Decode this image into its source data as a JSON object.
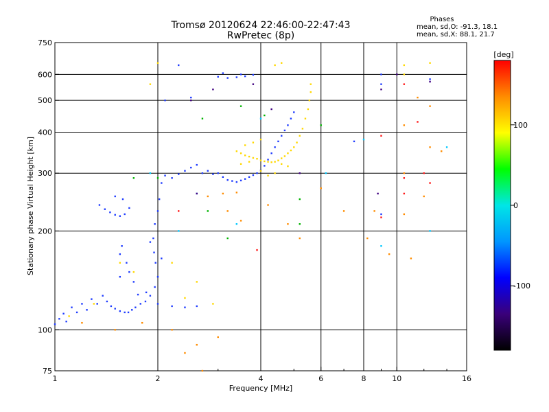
{
  "chart_data": {
    "type": "scatter",
    "title": "Tromsø 20120624 22:46:00-22:47:43",
    "subtitle": "RwPretec (8p)",
    "xlabel": "Frequency [MHz]",
    "ylabel": "Stationary phase Virtual Height [km]",
    "x_scale": "log",
    "y_scale": "log",
    "xlim": [
      1,
      16
    ],
    "ylim": [
      75,
      750
    ],
    "x_ticks": [
      1,
      2,
      4,
      6,
      8,
      10,
      16
    ],
    "y_ticks": [
      75,
      100,
      200,
      300,
      400,
      500,
      600,
      750
    ],
    "x_grid": [
      2,
      4,
      6,
      8,
      10
    ],
    "y_grid": [
      100,
      200,
      300,
      400,
      500,
      600
    ],
    "grid": true,
    "colorbar": {
      "label": "[deg]",
      "ticks": [
        100,
        0,
        -100
      ],
      "range": [
        -180,
        180
      ],
      "colors": [
        "#000000",
        "#3a007a",
        "#0000ff",
        "#0096ff",
        "#00e6e6",
        "#00ff00",
        "#ffff00",
        "#ff8c00",
        "#ff0000"
      ]
    },
    "legend": {
      "title": "Phases",
      "entries": [
        "mean, sd,O: -91.3, 18.1",
        "mean, sd,X:  88.1, 21.7"
      ]
    },
    "series": [
      {
        "mode": "O",
        "color": "#1f3cff",
        "points": [
          [
            1.0,
            104
          ],
          [
            1.03,
            108
          ],
          [
            1.06,
            112
          ],
          [
            1.08,
            106
          ],
          [
            1.12,
            117
          ],
          [
            1.16,
            113
          ],
          [
            1.2,
            120
          ],
          [
            1.24,
            115
          ],
          [
            1.28,
            124
          ],
          [
            1.33,
            120
          ],
          [
            1.38,
            127
          ],
          [
            1.42,
            122
          ],
          [
            1.46,
            118
          ],
          [
            1.5,
            116
          ],
          [
            1.55,
            114
          ],
          [
            1.6,
            113
          ],
          [
            1.64,
            113
          ],
          [
            1.68,
            115
          ],
          [
            1.72,
            117
          ],
          [
            1.78,
            120
          ],
          [
            1.84,
            122
          ],
          [
            1.9,
            127
          ],
          [
            1.96,
            135
          ],
          [
            2.0,
            145
          ],
          [
            1.97,
            160
          ],
          [
            1.95,
            172
          ],
          [
            1.94,
            190
          ],
          [
            1.96,
            210
          ],
          [
            2.02,
            250
          ],
          [
            2.05,
            280
          ],
          [
            2.1,
            295
          ],
          [
            2.2,
            290
          ],
          [
            2.3,
            298
          ],
          [
            2.4,
            305
          ],
          [
            2.5,
            312
          ],
          [
            2.6,
            318
          ],
          [
            2.7,
            300
          ],
          [
            2.8,
            305
          ],
          [
            2.9,
            298
          ],
          [
            3.0,
            300
          ],
          [
            3.1,
            292
          ],
          [
            3.2,
            286
          ],
          [
            3.3,
            284
          ],
          [
            3.4,
            282
          ],
          [
            3.5,
            285
          ],
          [
            3.6,
            288
          ],
          [
            3.7,
            292
          ],
          [
            3.8,
            296
          ],
          [
            3.9,
            300
          ],
          [
            4.0,
            306
          ],
          [
            4.1,
            316
          ],
          [
            4.2,
            330
          ],
          [
            4.3,
            345
          ],
          [
            4.4,
            360
          ],
          [
            4.5,
            375
          ],
          [
            4.6,
            390
          ],
          [
            4.7,
            405
          ],
          [
            4.8,
            420
          ],
          [
            4.9,
            440
          ],
          [
            5.0,
            460
          ],
          [
            1.35,
            240
          ],
          [
            1.4,
            233
          ],
          [
            1.45,
            228
          ],
          [
            1.5,
            224
          ],
          [
            1.55,
            222
          ],
          [
            1.6,
            225
          ],
          [
            1.65,
            235
          ],
          [
            1.58,
            250
          ],
          [
            1.5,
            255
          ],
          [
            1.55,
            170
          ],
          [
            1.57,
            180
          ],
          [
            1.62,
            160
          ],
          [
            1.65,
            150
          ],
          [
            1.7,
            140
          ],
          [
            1.55,
            145
          ],
          [
            2.0,
            120
          ],
          [
            2.2,
            118
          ],
          [
            2.4,
            117
          ],
          [
            2.6,
            118
          ],
          [
            2.1,
            500
          ],
          [
            2.3,
            640
          ],
          [
            3.0,
            590
          ],
          [
            3.2,
            585
          ],
          [
            3.4,
            588
          ],
          [
            3.6,
            592
          ],
          [
            3.8,
            598
          ],
          [
            3.1,
            605
          ],
          [
            3.5,
            600
          ],
          [
            2.0,
            230
          ],
          [
            1.9,
            185
          ],
          [
            2.05,
            165
          ],
          [
            1.85,
            130
          ],
          [
            1.75,
            128
          ],
          [
            2.5,
            510
          ],
          [
            9.0,
            560
          ],
          [
            9.0,
            225
          ],
          [
            9.0,
            600
          ],
          [
            7.5,
            375
          ],
          [
            12.5,
            580
          ]
        ]
      },
      {
        "mode": "X",
        "color": "#ffd800",
        "points": [
          [
            3.4,
            350
          ],
          [
            3.5,
            345
          ],
          [
            3.6,
            340
          ],
          [
            3.7,
            337
          ],
          [
            3.8,
            334
          ],
          [
            3.9,
            332
          ],
          [
            4.0,
            328
          ],
          [
            4.1,
            326
          ],
          [
            4.2,
            325
          ],
          [
            4.3,
            324
          ],
          [
            4.4,
            325
          ],
          [
            4.5,
            328
          ],
          [
            4.6,
            333
          ],
          [
            4.7,
            338
          ],
          [
            4.8,
            345
          ],
          [
            4.9,
            352
          ],
          [
            5.0,
            360
          ],
          [
            5.1,
            372
          ],
          [
            5.2,
            390
          ],
          [
            5.3,
            410
          ],
          [
            5.4,
            440
          ],
          [
            5.5,
            470
          ],
          [
            5.55,
            500
          ],
          [
            5.6,
            530
          ],
          [
            5.6,
            560
          ],
          [
            3.5,
            320
          ],
          [
            3.7,
            325
          ],
          [
            4.0,
            305
          ],
          [
            4.2,
            295
          ],
          [
            4.4,
            300
          ],
          [
            3.6,
            365
          ],
          [
            3.8,
            372
          ],
          [
            4.0,
            380
          ],
          [
            4.6,
            320
          ],
          [
            4.8,
            315
          ],
          [
            1.55,
            160
          ],
          [
            1.7,
            150
          ],
          [
            2.2,
            160
          ],
          [
            2.4,
            125
          ],
          [
            1.3,
            120
          ],
          [
            1.1,
            110
          ],
          [
            2.6,
            140
          ],
          [
            2.9,
            120
          ],
          [
            4.4,
            640
          ],
          [
            4.6,
            650
          ],
          [
            2.0,
            650
          ],
          [
            1.9,
            560
          ],
          [
            10.5,
            640
          ],
          [
            10.5,
            600
          ],
          [
            12.5,
            650
          ]
        ]
      },
      {
        "mode": "scattered",
        "color": "#ff8c00",
        "points": [
          [
            1.2,
            105
          ],
          [
            1.5,
            100
          ],
          [
            1.8,
            105
          ],
          [
            2.2,
            100
          ],
          [
            2.4,
            85
          ],
          [
            2.6,
            90
          ],
          [
            3.0,
            95
          ],
          [
            3.2,
            230
          ],
          [
            3.5,
            215
          ],
          [
            4.2,
            240
          ],
          [
            4.8,
            210
          ],
          [
            5.2,
            190
          ],
          [
            2.8,
            255
          ],
          [
            3.1,
            260
          ],
          [
            3.4,
            262
          ],
          [
            6.0,
            270
          ],
          [
            7.0,
            230
          ],
          [
            8.2,
            190
          ],
          [
            8.6,
            230
          ],
          [
            9.5,
            170
          ],
          [
            10.5,
            225
          ],
          [
            10.5,
            300
          ],
          [
            10.5,
            420
          ],
          [
            11.5,
            510
          ],
          [
            12.5,
            360
          ],
          [
            12.5,
            480
          ],
          [
            13.5,
            350
          ],
          [
            12.0,
            255
          ],
          [
            11.0,
            165
          ],
          [
            2.7,
            75
          ]
        ]
      },
      {
        "mode": "scattered",
        "color": "#00b400",
        "points": [
          [
            2.8,
            230
          ],
          [
            3.2,
            190
          ],
          [
            2.7,
            440
          ],
          [
            4.1,
            450
          ],
          [
            1.7,
            290
          ],
          [
            2.0,
            290
          ],
          [
            5.2,
            250
          ],
          [
            5.2,
            210
          ],
          [
            3.5,
            480
          ],
          [
            6.0,
            420
          ]
        ]
      },
      {
        "mode": "scattered",
        "color": "#ff1a1a",
        "points": [
          [
            10.5,
            290
          ],
          [
            10.5,
            260
          ],
          [
            11.5,
            430
          ],
          [
            12.0,
            300
          ],
          [
            9.0,
            390
          ],
          [
            9.0,
            220
          ],
          [
            2.3,
            230
          ],
          [
            3.9,
            175
          ],
          [
            12.5,
            280
          ],
          [
            10.5,
            560
          ]
        ]
      },
      {
        "mode": "scattered",
        "color": "#00c8ff",
        "points": [
          [
            1.9,
            300
          ],
          [
            2.3,
            200
          ],
          [
            2.6,
            260
          ],
          [
            3.4,
            210
          ],
          [
            4.0,
            440
          ],
          [
            6.2,
            300
          ],
          [
            8.0,
            380
          ],
          [
            9.0,
            180
          ],
          [
            12.5,
            200
          ],
          [
            14.0,
            360
          ]
        ]
      },
      {
        "mode": "scattered",
        "color": "#400080",
        "points": [
          [
            2.5,
            500
          ],
          [
            2.9,
            540
          ],
          [
            3.8,
            560
          ],
          [
            4.3,
            470
          ],
          [
            9.0,
            540
          ],
          [
            10.0,
            600
          ],
          [
            12.5,
            570
          ],
          [
            8.8,
            260
          ],
          [
            5.2,
            300
          ],
          [
            2.6,
            260
          ]
        ]
      }
    ]
  }
}
